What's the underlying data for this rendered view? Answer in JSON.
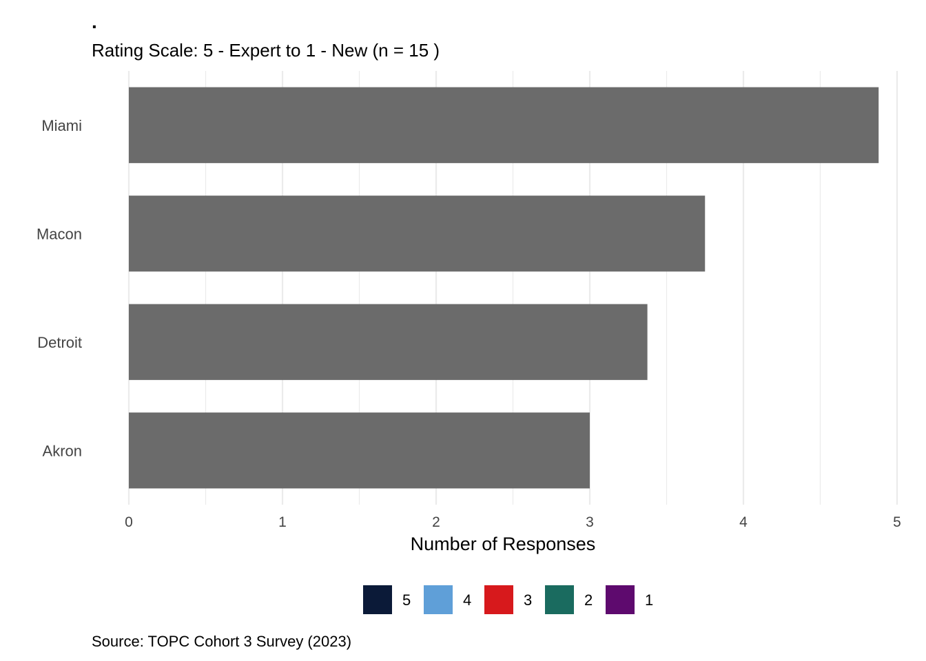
{
  "chart_data": {
    "type": "bar",
    "orientation": "horizontal",
    "title": ".",
    "subtitle": "Rating Scale: 5 - Expert to 1 - New (n = 15 )",
    "caption": "Source: TOPC Cohort 3 Survey (2023)",
    "xlabel": "Number of Responses",
    "ylabel": "",
    "categories": [
      "Miami",
      "Macon",
      "Detroit",
      "Akron"
    ],
    "values": [
      4.88,
      3.75,
      3.375,
      3.0
    ],
    "bar_color": "#6b6b6b",
    "xlim": [
      0,
      5
    ],
    "xticks": [
      "0",
      "1",
      "2",
      "3",
      "4",
      "5"
    ],
    "grid": true,
    "legend": {
      "position": "bottom",
      "items": [
        {
          "label": "5",
          "color": "#0b1a38"
        },
        {
          "label": "4",
          "color": "#5f9fd8"
        },
        {
          "label": "3",
          "color": "#d7191c"
        },
        {
          "label": "2",
          "color": "#1a6b5f"
        },
        {
          "label": "1",
          "color": "#5e0a6e"
        }
      ]
    }
  }
}
